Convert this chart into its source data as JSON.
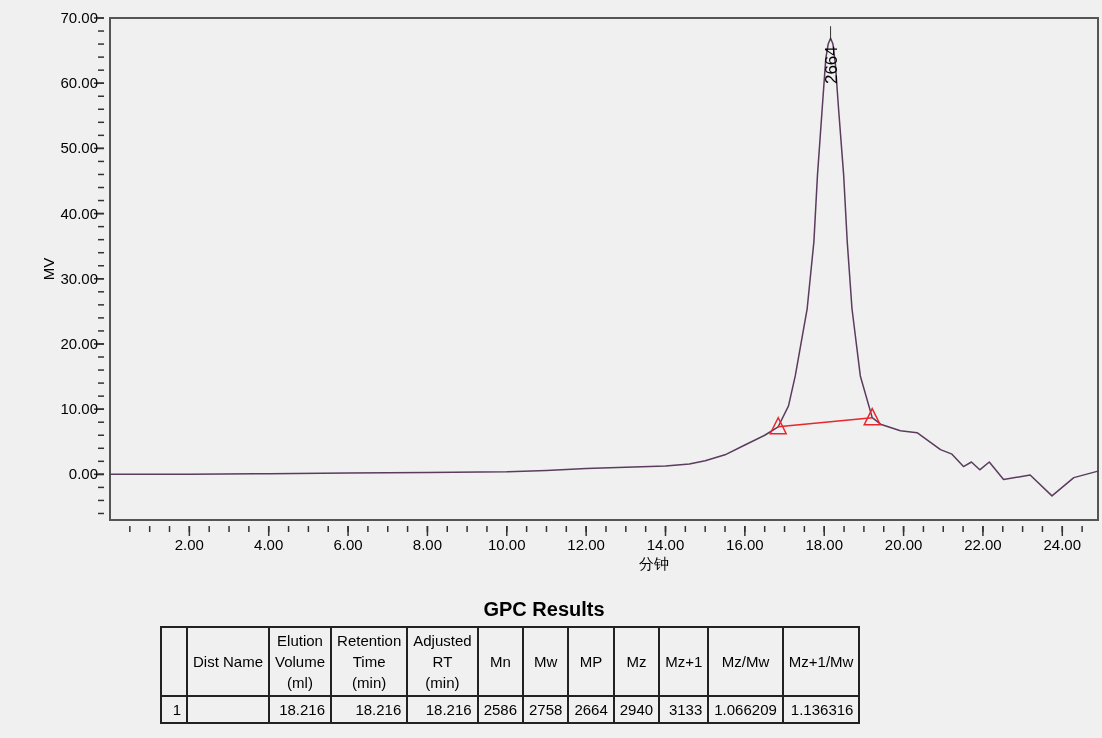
{
  "chart_data": {
    "type": "line",
    "xlabel": "分钟",
    "ylabel": "MV",
    "xlim": [
      0,
      24.9
    ],
    "ylim": [
      -7,
      70
    ],
    "xticks": [
      {
        "value": 2,
        "label": "2.00"
      },
      {
        "value": 4,
        "label": "4.00"
      },
      {
        "value": 6,
        "label": "6.00"
      },
      {
        "value": 8,
        "label": "8.00"
      },
      {
        "value": 10,
        "label": "10.00"
      },
      {
        "value": 12,
        "label": "12.00"
      },
      {
        "value": 14,
        "label": "14.00"
      },
      {
        "value": 16,
        "label": "16.00"
      },
      {
        "value": 18,
        "label": "18.00"
      },
      {
        "value": 20,
        "label": "20.00"
      },
      {
        "value": 22,
        "label": "22.00"
      },
      {
        "value": 24,
        "label": "24.00"
      }
    ],
    "yticks": [
      {
        "value": 0,
        "label": "0.00"
      },
      {
        "value": 10,
        "label": "10.00"
      },
      {
        "value": 20,
        "label": "20.00"
      },
      {
        "value": 30,
        "label": "30.00"
      },
      {
        "value": 40,
        "label": "40.00"
      },
      {
        "value": 50,
        "label": "50.00"
      },
      {
        "value": 60,
        "label": "60.00"
      },
      {
        "value": 70,
        "label": "70.00"
      }
    ],
    "grid": false,
    "line_style": "solid",
    "series": [
      {
        "color": "#5b3b5e",
        "marker": "none",
        "x": [
          0.0,
          2,
          4,
          6,
          8,
          10,
          11,
          12,
          13,
          14,
          14.6,
          15,
          15.5,
          16,
          16.5,
          16.84,
          17.1,
          17.27,
          17.57,
          17.74,
          17.83,
          17.95,
          18.04,
          18.1,
          18.16,
          18.22,
          18.28,
          18.36,
          18.49,
          18.58,
          18.7,
          18.91,
          19.21,
          19.42,
          19.92,
          20.34,
          20.93,
          21.22,
          21.51,
          21.71,
          21.92,
          22.16,
          22.52,
          23.19,
          23.74,
          24.29,
          24.9
        ],
        "values": [
          0.0,
          0.0,
          0.1,
          0.2,
          0.3,
          0.4,
          0.6,
          0.9,
          1.1,
          1.3,
          1.6,
          2.1,
          3.0,
          4.5,
          6.0,
          7.3,
          10.5,
          15.1,
          25.4,
          35.7,
          45.9,
          56.2,
          63.8,
          66.0,
          66.9,
          66.0,
          63.0,
          56.2,
          45.9,
          35.7,
          25.4,
          15.1,
          8.7,
          7.7,
          6.7,
          6.4,
          3.8,
          3.1,
          1.2,
          1.9,
          0.7,
          1.9,
          -0.8,
          -0.1,
          -3.3,
          -0.5,
          0.5
        ]
      },
      {
        "color": "#e8262b",
        "marker": "triangle",
        "x": [
          16.84,
          19.21
        ],
        "values": [
          7.3,
          8.7
        ]
      }
    ],
    "annotations": [
      {
        "text": "2664",
        "x": 18.16,
        "y": 66.9
      },
      "GPC Results",
      null,
      "Dist Name",
      "Elution\nVolume\n(ml)",
      "Retention\nTime\n(min)",
      "Adjusted\nRT\n(min)",
      "Mn",
      "Mw",
      "MP",
      "Mz",
      "Mz+1",
      "Mz/Mw",
      "Mz+1/Mw",
      "1",
      null,
      "18.216",
      "18.216",
      "18.216",
      "2586",
      "2758",
      "2664",
      "2940",
      "3133",
      "1.066209",
      "1.136316"
    ]
  }
}
